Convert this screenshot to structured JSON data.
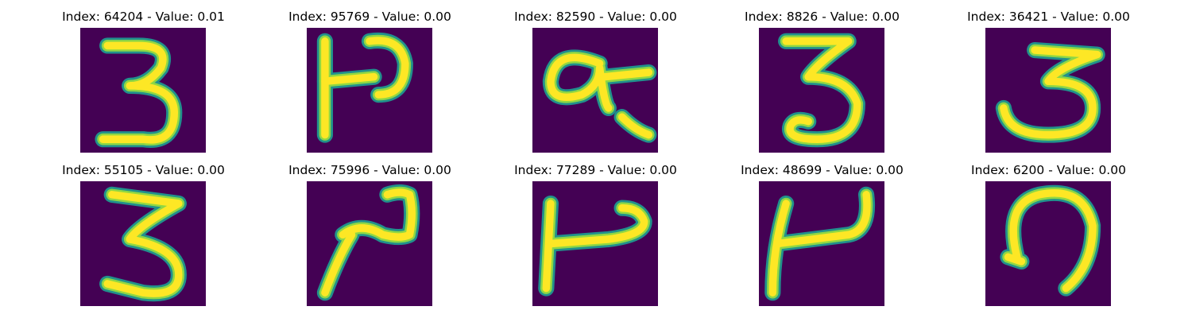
{
  "panels": [
    {
      "title": "Index: 64204 - Value: 0.01",
      "digit": "3-open"
    },
    {
      "title": "Index: 95769 - Value: 0.00",
      "digit": "hook-bar"
    },
    {
      "title": "Index: 82590 - Value: 0.00",
      "digit": "loop-tail"
    },
    {
      "title": "Index: 8826 - Value: 0.00",
      "digit": "3-loop"
    },
    {
      "title": "Index: 36421 - Value: 0.00",
      "digit": "3-wide"
    },
    {
      "title": "Index: 55105 - Value: 0.00",
      "digit": "3-tall"
    },
    {
      "title": "Index: 75996 - Value: 0.00",
      "digit": "slant-hook"
    },
    {
      "title": "Index: 77289 - Value: 0.00",
      "digit": "bar-hook"
    },
    {
      "title": "Index: 48699 - Value: 0.00",
      "digit": "bar-hook-tall"
    },
    {
      "title": "Index: 6200 - Value: 0.00",
      "digit": "curl"
    }
  ],
  "colors": {
    "background": "#440154",
    "stroke_core": "#fde725",
    "stroke_mid": "#8fd744",
    "stroke_edge": "#21918c"
  }
}
